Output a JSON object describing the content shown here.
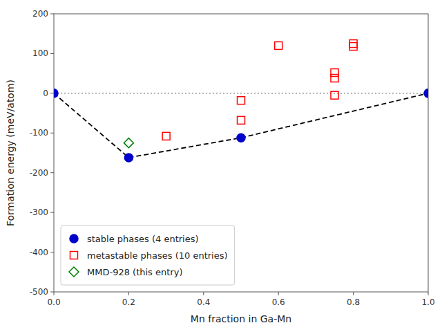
{
  "chart_data": {
    "type": "scatter",
    "xlabel": "Mn fraction in Ga-Mn",
    "ylabel": "Formation energy (meV/atom)",
    "xlim": [
      0.0,
      1.0
    ],
    "ylim": [
      -500,
      200
    ],
    "xticks": [
      {
        "value": 0.0,
        "label": "0.0"
      },
      0.2,
      0.4,
      0.6,
      0.8,
      {
        "value": 1.0,
        "label": "1.0"
      }
    ],
    "yticks": [
      -500,
      -400,
      -300,
      -200,
      -100,
      0,
      100,
      200
    ],
    "grid": false,
    "legend": "lower left",
    "series": [
      {
        "name": "stable phases (4 entries)",
        "color": "#0000cc",
        "marker": "circle",
        "x": [
          0.0,
          0.2,
          0.5,
          1.0
        ],
        "values": [
          0.0,
          -162.0,
          -112.0,
          0.0
        ]
      },
      {
        "name": "metastable phases (10 entries)",
        "color": "red",
        "marker": "square",
        "x": [
          0.3,
          0.5,
          0.5,
          0.6,
          0.75,
          0.75,
          0.75,
          0.8,
          0.8
        ],
        "values": [
          -108.0,
          -18.0,
          -68.0,
          120.0,
          -5.0,
          38.0,
          52.0,
          118.0,
          125.0
        ]
      },
      {
        "name": "MMD-928 (this entry)",
        "color": "green",
        "marker": "diamond",
        "x": [
          0.2
        ],
        "values": [
          -125.0
        ]
      },
      {
        "type": "hline",
        "color": "gray",
        "line_style": "dotted",
        "values": [
          0.0
        ]
      },
      {
        "type": "line",
        "color": "black",
        "line_style": "dashed",
        "x": [
          0.0,
          0.2,
          0.5,
          1.0
        ],
        "values": [
          0.0,
          -162.0,
          -112.0,
          0.0
        ]
      }
    ]
  }
}
